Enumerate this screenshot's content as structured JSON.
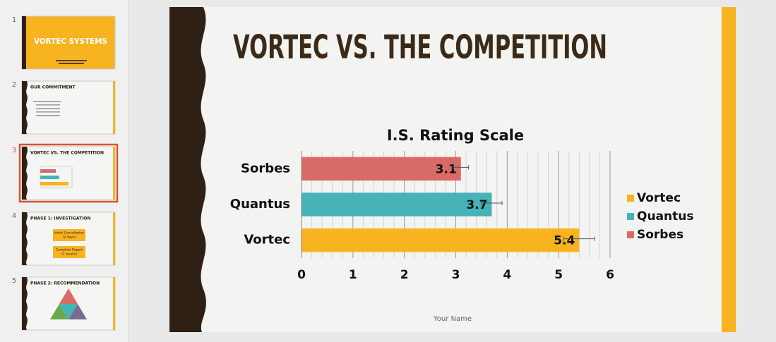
{
  "thumbnails": [
    {
      "number": "1",
      "title": "VORTEC SYSTEMS"
    },
    {
      "number": "2",
      "title": "OUR COMMITMENT"
    },
    {
      "number": "3",
      "title": "VORTEC VS. THE COMPETITION"
    },
    {
      "number": "4",
      "title": "PHASE 1: INVESTIGATION",
      "boxes": [
        [
          "Initial Consultation",
          "(2 days)"
        ],
        [
          "Complete Report",
          "(2 weeks)"
        ]
      ]
    },
    {
      "number": "5",
      "title": "PHASE 2: RECOMMENDATION"
    }
  ],
  "selected": 2,
  "slide": {
    "title": "VORTEC VS. THE COMPETITION",
    "footer": "Your Name"
  },
  "chart_data": {
    "type": "hbar",
    "title": "I.S. Rating Scale",
    "categories": [
      "Vortec",
      "Quantus",
      "Sorbes"
    ],
    "values": [
      5.4,
      3.7,
      3.1
    ],
    "errors": [
      0.3,
      0.2,
      0.15
    ],
    "colors": [
      "#f7b320",
      "#45b3b8",
      "#d96b66"
    ],
    "xlim": [
      0,
      6
    ],
    "xticks": [
      0,
      1,
      2,
      3,
      4,
      5,
      6
    ],
    "grid": true,
    "minor_grid": true,
    "legend": "right"
  }
}
